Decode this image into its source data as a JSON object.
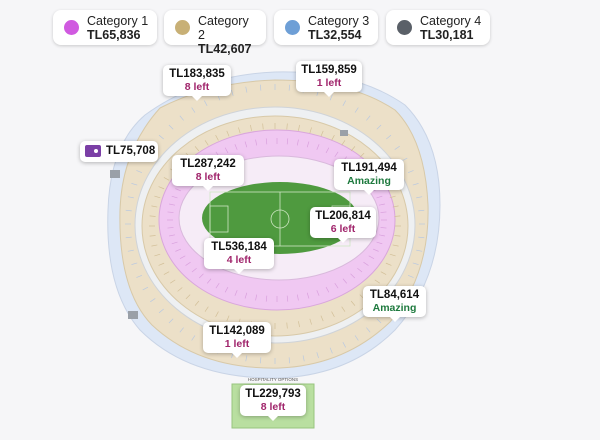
{
  "legend": [
    {
      "name": "Category 1",
      "price": "TL65,836",
      "color": "#d05ae0"
    },
    {
      "name": "Category 2",
      "price": "TL42,607",
      "color": "#c8b076"
    },
    {
      "name": "Category 3",
      "price": "TL32,554",
      "color": "#6e9fd6"
    },
    {
      "name": "Category 4",
      "price": "TL30,181",
      "color": "#5a6068"
    }
  ],
  "colors": {
    "category1_fill": "#f0c8f2",
    "category2_fill": "#ece0c8",
    "category3_fill": "#dde7f6",
    "pitch": "#4f9a3f",
    "hospitality": "#b9dfa0",
    "note_default": "#a0246b",
    "note_good": "#1e7a3e"
  },
  "price_tags": [
    {
      "price": "TL183,835",
      "note": "8 left"
    },
    {
      "price": "TL159,859",
      "note": "1 left"
    },
    {
      "price": "TL75,708"
    },
    {
      "price": "TL287,242",
      "note": "8 left"
    },
    {
      "price": "TL191,494",
      "note": "Amazing"
    },
    {
      "price": "TL206,814",
      "note": "6 left"
    },
    {
      "price": "TL536,184",
      "note": "4 left"
    },
    {
      "price": "TL84,614",
      "note": "Amazing"
    },
    {
      "price": "TL142,089",
      "note": "1 left"
    },
    {
      "price": "TL229,793",
      "note": "8 left"
    }
  ],
  "hospitality": {
    "label": "HOSPITALITY OPTIONS"
  },
  "icons": {
    "price_tag": "tag-icon"
  }
}
